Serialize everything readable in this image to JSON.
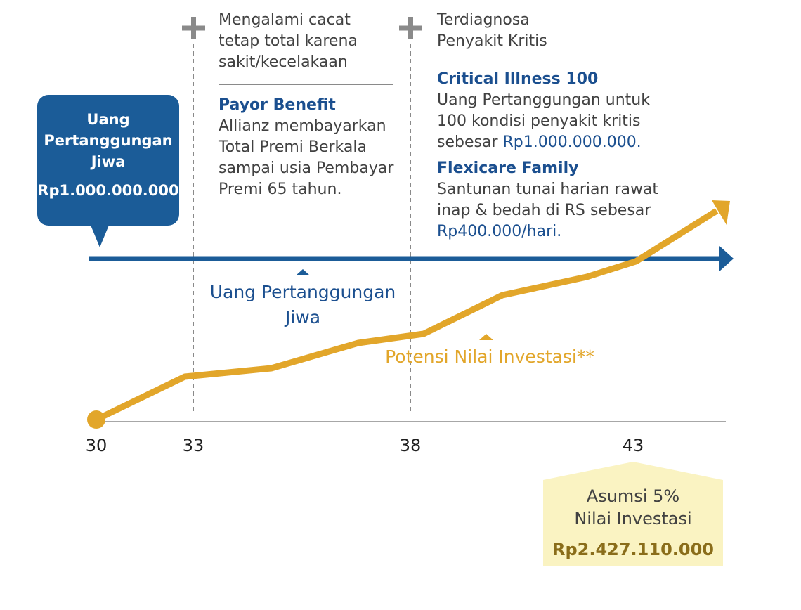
{
  "callout": {
    "title": "Uang Pertanggungan Jiwa",
    "amount": "Rp1.000.000.000"
  },
  "event1": {
    "heading_lines": [
      "Mengalami cacat",
      "tetap total karena",
      "sakit/kecelakaan"
    ],
    "benefit_title": "Payor Benefit",
    "benefit_lines": [
      "Allianz membayarkan",
      "Total Premi Berkala",
      "sampai usia Pembayar",
      "Premi 65 tahun."
    ]
  },
  "event2": {
    "heading_lines": [
      "Terdiagnosa",
      "Penyakit Kritis"
    ],
    "ci_title": "Critical Illness 100",
    "ci_lines": [
      "Uang Pertanggungan untuk",
      "100 kondisi penyakit kritis"
    ],
    "ci_last_prefix": "sebesar ",
    "ci_last_amount": "Rp1.000.000.000.",
    "flex_title": "Flexicare Family",
    "flex_lines": [
      "Santunan tunai harian rawat",
      "inap & bedah di RS sebesar"
    ],
    "flex_amount": "Rp400.000/hari."
  },
  "sum_assured_label": "Uang Pertanggungan Jiwa",
  "investment_label": "Potensi Nilai Investasi**",
  "axis": {
    "ages": [
      "30",
      "33",
      "38",
      "43"
    ]
  },
  "assumption": {
    "line1": "Asumsi 5%",
    "line2": "Nilai Investasi",
    "amount": "Rp2.427.110.000"
  },
  "colors": {
    "blue": "#1b5c98",
    "dark_blue": "#1b4f8f",
    "gold": "#e2a62a",
    "assumption_bg": "#faf3c2"
  },
  "icons": [
    "plus-icon",
    "arrow-right-icon",
    "arrow-up-right-icon"
  ]
}
